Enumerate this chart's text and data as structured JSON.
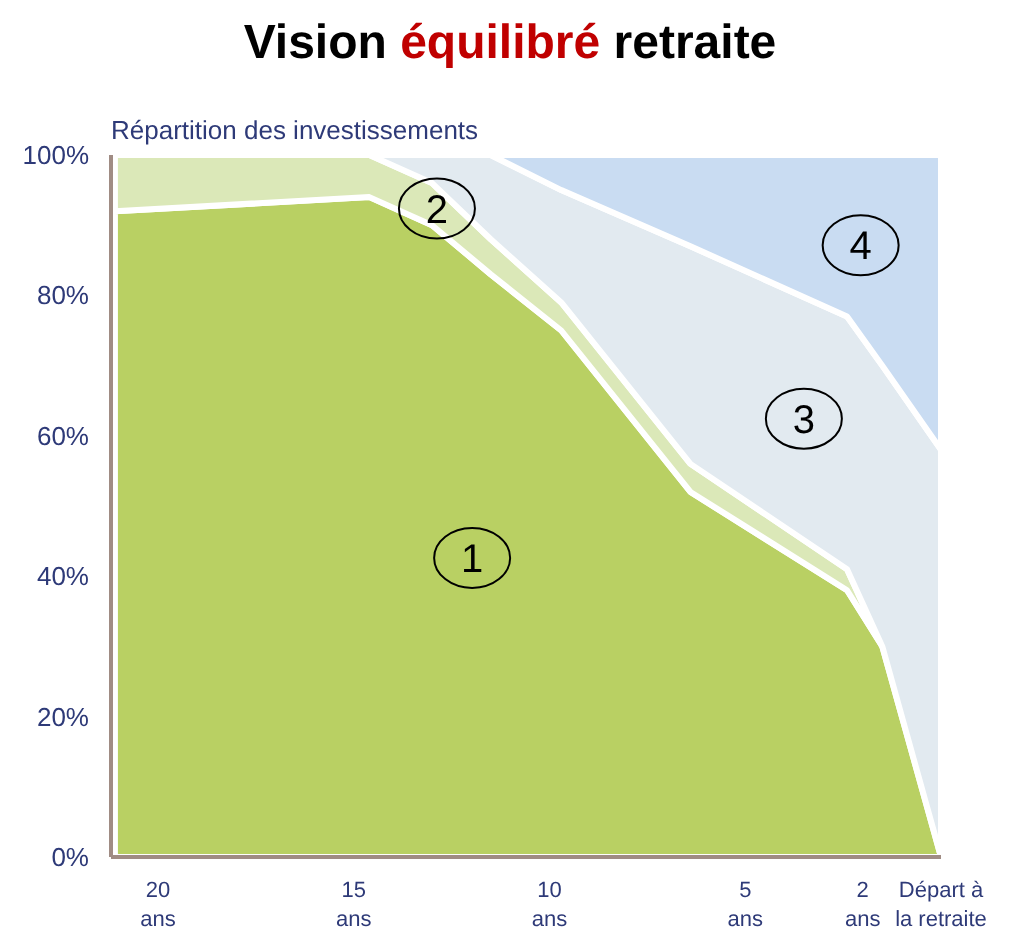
{
  "chart_data": {
    "type": "area",
    "stacked": true,
    "title": "Vision équilibré retraite",
    "ylabel": "Répartition des investissements",
    "x": [
      21.1,
      14.6,
      13,
      11.5,
      9.7,
      6.4,
      2.4,
      1.5,
      0
    ],
    "xlim": [
      21.2,
      0
    ],
    "xticks": [
      {
        "value": 20,
        "label": "20\nans"
      },
      {
        "value": 15,
        "label": "15\nans"
      },
      {
        "value": 10,
        "label": "10\nans"
      },
      {
        "value": 5,
        "label": "5\nans"
      },
      {
        "value": 2,
        "label": "2\nans"
      },
      {
        "value": 0,
        "label": "Départ à\nla retraite"
      }
    ],
    "ylim": [
      0,
      100
    ],
    "yticks": [
      {
        "value": 0,
        "label": "0%"
      },
      {
        "value": 20,
        "label": "20%"
      },
      {
        "value": 40,
        "label": "40%"
      },
      {
        "value": 60,
        "label": "60%"
      },
      {
        "value": 80,
        "label": "80%"
      },
      {
        "value": 100,
        "label": "100%"
      }
    ],
    "series": [
      {
        "name": "1",
        "color": "#b9d063",
        "values": [
          92,
          94,
          90,
          83,
          75,
          52,
          38,
          30,
          0
        ]
      },
      {
        "name": "2",
        "color": "#dbe8b8",
        "values": [
          8,
          6,
          6,
          5,
          4,
          4,
          3,
          0,
          null
        ]
      },
      {
        "name": "3",
        "color": "#e2eaf0",
        "values": [
          null,
          0,
          4,
          12,
          16,
          31,
          36,
          40,
          58
        ]
      },
      {
        "name": "4",
        "color": "#c9dcf2",
        "values": [
          null,
          null,
          null,
          0,
          5,
          13,
          23,
          30,
          42
        ]
      }
    ]
  }
}
